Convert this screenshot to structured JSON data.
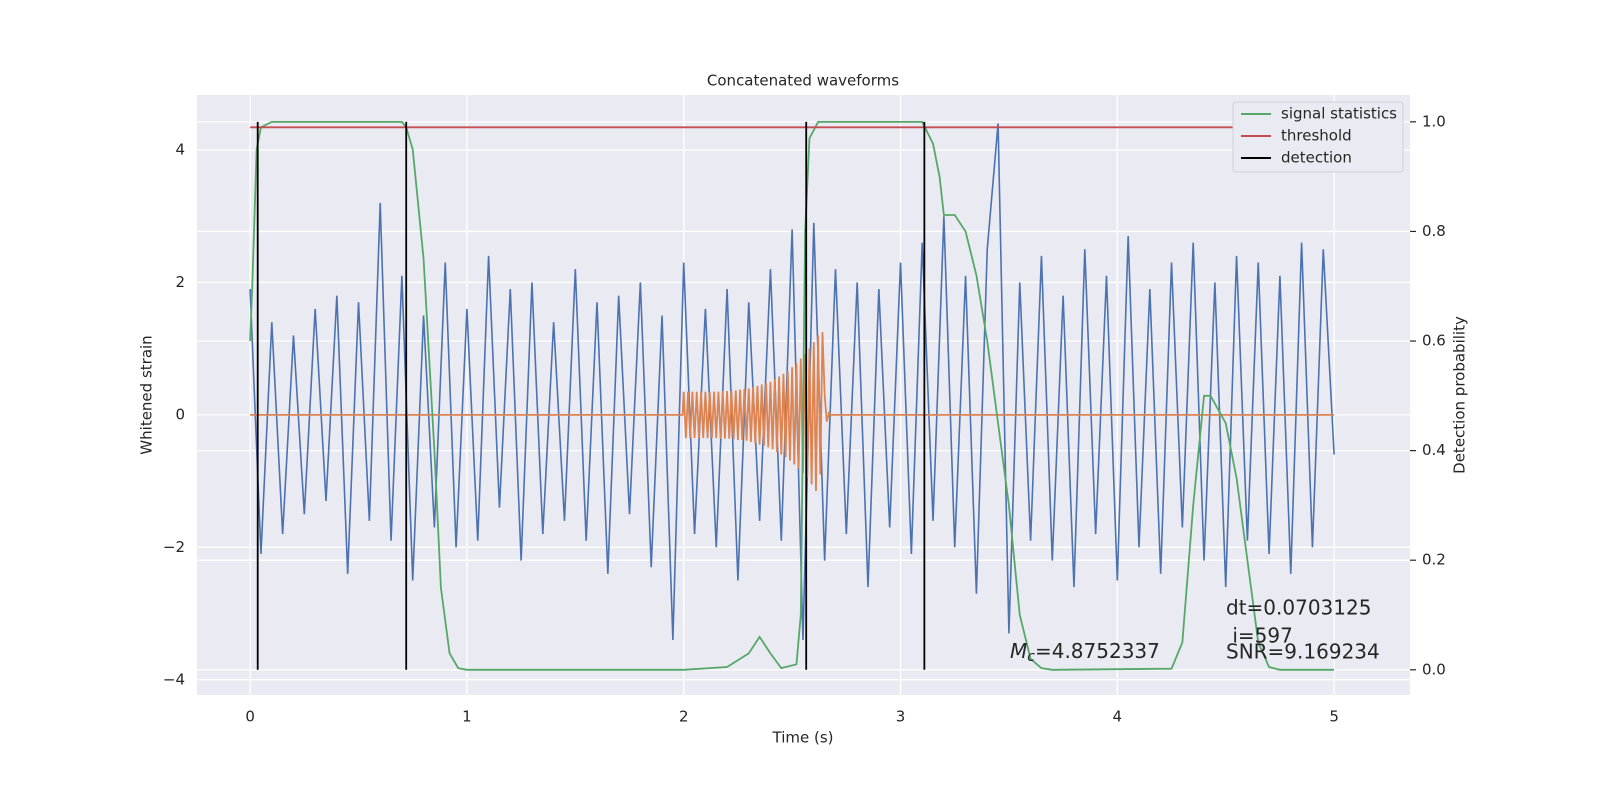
{
  "chart_data": {
    "type": "line",
    "title": "Concatenated waveforms",
    "xlabel": "Time (s)",
    "ylabel": "Whitened strain",
    "y2label": "Detection probability",
    "xlim": [
      -0.245,
      5.35
    ],
    "ylim": [
      -4.23,
      4.83
    ],
    "y2lim": [
      -0.046,
      1.049
    ],
    "xticks": [
      0,
      1,
      2,
      3,
      4,
      5
    ],
    "yticks": [
      {
        "value": -4,
        "label": "−4"
      },
      {
        "value": -2,
        "label": "−2"
      },
      0,
      2,
      4
    ],
    "y2ticks": [
      {
        "value": 0,
        "label": "0.0"
      },
      {
        "value": 0.2,
        "label": "0.2"
      },
      {
        "value": 0.4,
        "label": "0.4"
      },
      {
        "value": 0.6,
        "label": "0.6"
      },
      {
        "value": 0.8,
        "label": "0.8"
      },
      {
        "value": 1,
        "label": "1.0"
      }
    ],
    "grid": true,
    "legend": "upper right",
    "series": [
      {
        "color": "#4c72b0",
        "x": [
          0,
          0.05,
          0.1,
          0.15,
          0.2,
          0.25,
          0.3,
          0.35,
          0.4,
          0.45,
          0.5,
          0.55,
          0.6,
          0.65,
          0.7,
          0.75,
          0.8,
          0.85,
          0.9,
          0.95,
          1,
          1.05,
          1.1,
          1.15,
          1.2,
          1.25,
          1.3,
          1.35,
          1.4,
          1.45,
          1.5,
          1.55,
          1.6,
          1.65,
          1.7,
          1.75,
          1.8,
          1.85,
          1.9,
          1.95,
          2,
          2.05,
          2.1,
          2.15,
          2.2,
          2.25,
          2.3,
          2.35,
          2.4,
          2.45,
          2.5,
          2.55,
          2.6,
          2.65,
          2.7,
          2.75,
          2.8,
          2.85,
          2.9,
          2.95,
          3,
          3.05,
          3.1,
          3.15,
          3.2,
          3.25,
          3.3,
          3.35,
          3.4,
          3.45,
          3.5,
          3.55,
          3.6,
          3.65,
          3.7,
          3.75,
          3.8,
          3.85,
          3.9,
          3.95,
          4,
          4.05,
          4.1,
          4.15,
          4.2,
          4.25,
          4.3,
          4.35,
          4.4,
          4.45,
          4.5,
          4.55,
          4.6,
          4.65,
          4.7,
          4.75,
          4.8,
          4.85,
          4.9,
          4.95,
          5
        ],
        "values": [
          1.9,
          -2.1,
          1.4,
          -1.8,
          1.2,
          -1.5,
          1.6,
          -1.3,
          1.8,
          -2.4,
          1.7,
          -1.6,
          3.2,
          -1.9,
          2.1,
          -2.5,
          1.5,
          -1.7,
          2.3,
          -2.0,
          1.6,
          -1.9,
          2.4,
          -1.4,
          1.9,
          -2.2,
          2.0,
          -1.8,
          1.4,
          -1.6,
          2.2,
          -1.9,
          1.7,
          -2.4,
          1.8,
          -1.5,
          2.0,
          -2.3,
          1.5,
          -3.4,
          2.3,
          -1.8,
          1.6,
          -2.0,
          1.9,
          -2.5,
          1.7,
          -1.6,
          2.2,
          -1.9,
          2.8,
          -3.4,
          2.9,
          -2.2,
          2.2,
          -1.8,
          2.0,
          -2.6,
          1.9,
          -1.7,
          2.3,
          -2.1,
          2.6,
          -1.6,
          3.0,
          -2.0,
          2.1,
          -2.7,
          2.5,
          4.4,
          -3.3,
          2.0,
          -1.9,
          2.4,
          -2.2,
          1.8,
          -2.6,
          2.5,
          -1.8,
          2.1,
          -2.5,
          2.7,
          -2.0,
          1.9,
          -2.4,
          2.3,
          -1.7,
          2.6,
          -2.2,
          2.0,
          -2.6,
          2.4,
          -1.9,
          2.3,
          -2.1,
          2.1,
          -2.4,
          2.6,
          -2.0,
          2.5,
          -0.6
        ]
      },
      {
        "color": "#dd8452",
        "x": [
          0,
          1.995,
          2,
          2.01,
          2.02,
          2.03,
          2.04,
          2.05,
          2.06,
          2.07,
          2.08,
          2.09,
          2.1,
          2.11,
          2.12,
          2.13,
          2.14,
          2.15,
          2.16,
          2.17,
          2.18,
          2.19,
          2.2,
          2.21,
          2.22,
          2.23,
          2.24,
          2.25,
          2.26,
          2.27,
          2.28,
          2.29,
          2.3,
          2.31,
          2.32,
          2.33,
          2.34,
          2.35,
          2.36,
          2.37,
          2.38,
          2.39,
          2.4,
          2.41,
          2.42,
          2.43,
          2.44,
          2.45,
          2.46,
          2.47,
          2.48,
          2.49,
          2.5,
          2.51,
          2.52,
          2.53,
          2.54,
          2.55,
          2.56,
          2.57,
          2.58,
          2.59,
          2.6,
          2.61,
          2.62,
          2.63,
          2.64,
          2.65,
          2.66,
          2.67,
          2.68,
          5
        ],
        "values": [
          0,
          0,
          0.35,
          -0.35,
          0.35,
          -0.35,
          0.35,
          -0.35,
          0.35,
          -0.35,
          0.35,
          -0.35,
          0.35,
          -0.35,
          0.35,
          -0.35,
          0.35,
          -0.35,
          0.35,
          -0.36,
          0.36,
          -0.36,
          0.36,
          -0.36,
          0.37,
          -0.37,
          0.37,
          -0.38,
          0.38,
          -0.38,
          0.39,
          -0.39,
          0.4,
          -0.41,
          0.42,
          -0.43,
          0.44,
          -0.45,
          0.46,
          -0.47,
          0.48,
          -0.49,
          0.5,
          -0.52,
          0.54,
          -0.56,
          0.58,
          -0.6,
          0.62,
          -0.64,
          0.66,
          -0.69,
          0.72,
          -0.75,
          0.78,
          -0.81,
          0.85,
          -0.88,
          0.92,
          -0.95,
          1.0,
          -1.05,
          1.1,
          -1.15,
          1.2,
          -0.9,
          1.25,
          0.3,
          -0.1,
          0.03,
          0,
          0
        ]
      },
      {
        "name": "signal statistics",
        "color": "#55a868",
        "axis": "y2",
        "x": [
          0,
          0.01,
          0.03,
          0.05,
          0.1,
          0.7,
          0.72,
          0.75,
          0.8,
          0.85,
          0.88,
          0.92,
          0.96,
          1.0,
          2.0,
          2.2,
          2.3,
          2.35,
          2.4,
          2.45,
          2.52,
          2.54,
          2.56,
          2.58,
          2.62,
          3.1,
          3.15,
          3.18,
          3.2,
          3.25,
          3.3,
          3.35,
          3.4,
          3.45,
          3.5,
          3.55,
          3.6,
          3.65,
          3.7,
          4.25,
          4.3,
          4.35,
          4.4,
          4.43,
          4.5,
          4.55,
          4.6,
          4.65,
          4.7,
          4.75,
          5.0
        ],
        "values": [
          0.6,
          0.7,
          0.95,
          0.99,
          1.0,
          1.0,
          0.99,
          0.95,
          0.75,
          0.4,
          0.15,
          0.03,
          0.003,
          0.0,
          0.0,
          0.005,
          0.03,
          0.06,
          0.03,
          0.003,
          0.01,
          0.1,
          0.8,
          0.97,
          1.0,
          1.0,
          0.96,
          0.9,
          0.83,
          0.83,
          0.8,
          0.72,
          0.6,
          0.45,
          0.3,
          0.1,
          0.02,
          0.003,
          0.0,
          0.002,
          0.05,
          0.3,
          0.5,
          0.5,
          0.45,
          0.35,
          0.2,
          0.05,
          0.005,
          0.0,
          0.0
        ]
      },
      {
        "name": "threshold",
        "color": "#c44e52",
        "axis": "y2",
        "x": [
          0,
          5
        ],
        "values": [
          0.99,
          0.99
        ]
      }
    ],
    "detection": {
      "name": "detection",
      "color": "#000000",
      "x": [
        0.035,
        0.72,
        2.565,
        3.11
      ],
      "ymin": 0,
      "ymax": 1
    },
    "annotations": {
      "dt": "dt=0.0703125",
      "i": " i=597",
      "snr": "SNR=9.169234",
      "mc": {
        "main": "M",
        "sub": "c",
        "rest": "=4.8752337"
      }
    }
  }
}
